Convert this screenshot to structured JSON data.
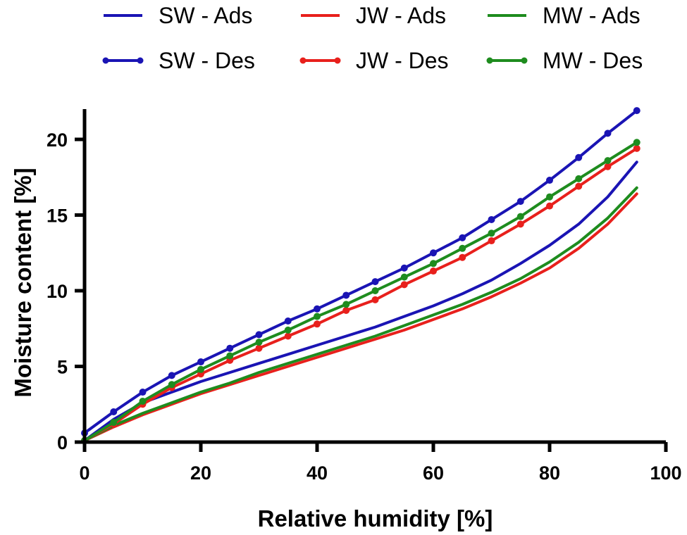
{
  "chart_data": {
    "type": "line",
    "title": "",
    "xlabel": "Relative humidity [%]",
    "ylabel": "Moisture content [%]",
    "xlim": [
      0,
      100
    ],
    "ylim": [
      0,
      22
    ],
    "x_ticks": [
      0,
      20,
      40,
      60,
      80,
      100
    ],
    "y_ticks": [
      0,
      5,
      10,
      15,
      20
    ],
    "x_tick_labels": [
      "0",
      "20",
      "40",
      "60",
      "80",
      "100"
    ],
    "y_tick_labels": [
      "0",
      "5",
      "10",
      "15",
      "20"
    ],
    "legend_position": "top",
    "x": [
      0,
      5,
      10,
      15,
      20,
      25,
      30,
      35,
      40,
      45,
      50,
      55,
      60,
      65,
      70,
      75,
      80,
      85,
      90,
      95
    ],
    "series": [
      {
        "name": "SW - Ads",
        "color": "#1a14b4",
        "markers": false,
        "values": [
          0.1,
          1.5,
          2.6,
          3.3,
          4.0,
          4.6,
          5.2,
          5.8,
          6.4,
          7.0,
          7.6,
          8.3,
          9.0,
          9.8,
          10.7,
          11.8,
          13.0,
          14.4,
          16.2,
          18.5
        ]
      },
      {
        "name": "JW - Ads",
        "color": "#e8201c",
        "markers": false,
        "values": [
          0.1,
          1.0,
          1.8,
          2.5,
          3.2,
          3.8,
          4.4,
          5.0,
          5.6,
          6.2,
          6.8,
          7.4,
          8.1,
          8.8,
          9.6,
          10.5,
          11.5,
          12.8,
          14.4,
          16.4
        ]
      },
      {
        "name": "MW - Ads",
        "color": "#1e8c1e",
        "markers": false,
        "values": [
          0.1,
          1.1,
          1.9,
          2.6,
          3.3,
          3.9,
          4.6,
          5.2,
          5.8,
          6.4,
          7.0,
          7.7,
          8.4,
          9.1,
          9.9,
          10.8,
          11.9,
          13.2,
          14.8,
          16.8
        ]
      },
      {
        "name": "SW - Des",
        "color": "#1a14b4",
        "markers": true,
        "values": [
          0.6,
          2.0,
          3.3,
          4.4,
          5.3,
          6.2,
          7.1,
          8.0,
          8.8,
          9.7,
          10.6,
          11.5,
          12.5,
          13.5,
          14.7,
          15.9,
          17.3,
          18.8,
          20.4,
          21.9
        ]
      },
      {
        "name": "JW - Des",
        "color": "#e8201c",
        "markers": true,
        "values": [
          0.1,
          1.2,
          2.5,
          3.6,
          4.5,
          5.4,
          6.2,
          7.0,
          7.8,
          8.7,
          9.4,
          10.4,
          11.3,
          12.2,
          13.3,
          14.4,
          15.6,
          16.9,
          18.2,
          19.4
        ]
      },
      {
        "name": "MW - Des",
        "color": "#1e8c1e",
        "markers": true,
        "values": [
          0.1,
          1.3,
          2.7,
          3.8,
          4.8,
          5.7,
          6.6,
          7.4,
          8.3,
          9.1,
          10.0,
          10.9,
          11.8,
          12.8,
          13.8,
          14.9,
          16.2,
          17.4,
          18.6,
          19.8
        ]
      }
    ]
  }
}
